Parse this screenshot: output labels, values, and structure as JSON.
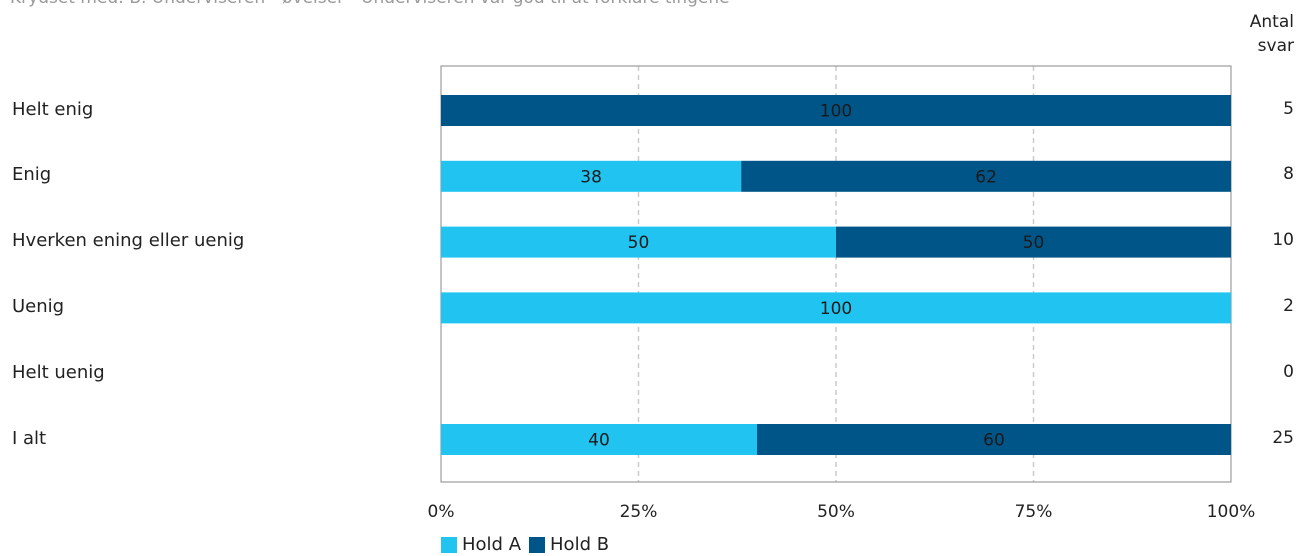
{
  "subtitle": "Krydset med: B. Underviseren - øvelser - Underviseren var god til at forklare tingene",
  "count_header": [
    "Antal",
    "svar"
  ],
  "colors": {
    "hold_a": "#21C4F0",
    "hold_b": "#005588",
    "grid": "#cccccc",
    "frame": "#888888"
  },
  "chart_data": {
    "type": "bar",
    "orientation": "horizontal",
    "stacked": true,
    "categories": [
      "Helt enig",
      "Enig",
      "Hverken ening eller uenig",
      "Uenig",
      "Helt uenig",
      "I alt"
    ],
    "series": [
      {
        "name": "Hold A",
        "values": [
          0,
          38,
          50,
          100,
          0,
          40
        ]
      },
      {
        "name": "Hold B",
        "values": [
          100,
          62,
          50,
          0,
          0,
          60
        ]
      }
    ],
    "counts": [
      "5",
      "8",
      "10",
      "2",
      "0",
      "25"
    ],
    "xlim": [
      0,
      100
    ],
    "xticks": [
      "0%",
      "25%",
      "50%",
      "75%",
      "100%"
    ],
    "grid": true,
    "legend": "bottom"
  }
}
